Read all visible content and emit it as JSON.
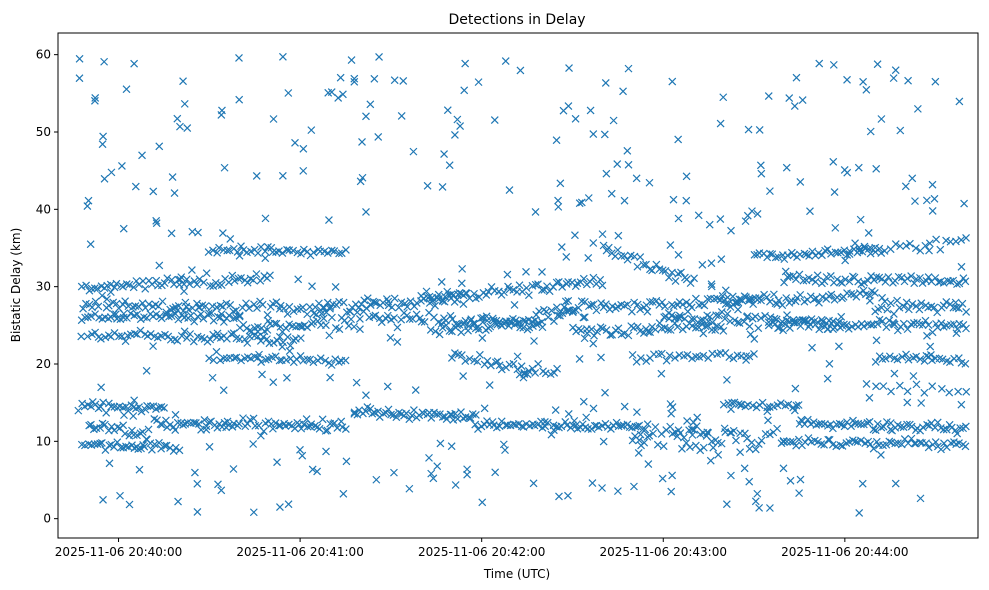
{
  "chart_data": {
    "type": "scatter",
    "title": "Detections in Delay",
    "xlabel": "Time (UTC)",
    "ylabel": "Bistatic Delay (km)",
    "marker": "x",
    "color": "#1f77b4",
    "x_axis_kind": "datetime",
    "xlim": [
      "2025-11-06 20:39:40",
      "2025-11-06 20:44:44"
    ],
    "ylim": [
      -2.5,
      62.8
    ],
    "x_ticks": [
      "2025-11-06 20:40:00",
      "2025-11-06 20:41:00",
      "2025-11-06 20:42:00",
      "2025-11-06 20:43:00",
      "2025-11-06 20:44:00"
    ],
    "y_ticks": [
      0,
      10,
      20,
      30,
      40,
      50,
      60
    ],
    "grid": false,
    "legend": "none",
    "tracks": [
      {
        "t0": "2025-11-06 20:39:47",
        "t1": "2025-11-06 20:40:15",
        "y0": 14.8,
        "y1": 14.2,
        "n": 32,
        "sd": 0.3
      },
      {
        "t0": "2025-11-06 20:39:48",
        "t1": "2025-11-06 20:40:20",
        "y0": 9.6,
        "y1": 9.2,
        "n": 34,
        "sd": 0.3
      },
      {
        "t0": "2025-11-06 20:39:50",
        "t1": "2025-11-06 20:40:10",
        "y0": 12.0,
        "y1": 11.0,
        "n": 22,
        "sd": 0.4
      },
      {
        "t0": "2025-11-06 20:40:12",
        "t1": "2025-11-06 20:41:15",
        "y0": 12.3,
        "y1": 12.0,
        "n": 75,
        "sd": 0.35
      },
      {
        "t0": "2025-11-06 20:41:18",
        "t1": "2025-11-06 20:41:58",
        "y0": 13.8,
        "y1": 13.2,
        "n": 48,
        "sd": 0.35
      },
      {
        "t0": "2025-11-06 20:41:58",
        "t1": "2025-11-06 20:42:55",
        "y0": 12.2,
        "y1": 12.0,
        "n": 65,
        "sd": 0.3
      },
      {
        "t0": "2025-11-06 20:42:50",
        "t1": "2025-11-06 20:43:15",
        "y0": 10.2,
        "y1": 11.6,
        "n": 28,
        "sd": 0.6
      },
      {
        "t0": "2025-11-06 20:43:05",
        "t1": "2025-11-06 20:43:40",
        "y0": 9.2,
        "y1": 10.8,
        "n": 30,
        "sd": 0.8
      },
      {
        "t0": "2025-11-06 20:43:20",
        "t1": "2025-11-06 20:43:45",
        "y0": 14.7,
        "y1": 14.6,
        "n": 22,
        "sd": 0.2
      },
      {
        "t0": "2025-11-06 20:43:40",
        "t1": "2025-11-06 20:44:40",
        "y0": 10.0,
        "y1": 9.6,
        "n": 60,
        "sd": 0.3
      },
      {
        "t0": "2025-11-06 20:43:45",
        "t1": "2025-11-06 20:44:40",
        "y0": 12.4,
        "y1": 11.6,
        "n": 60,
        "sd": 0.3
      },
      {
        "t0": "2025-11-06 20:39:48",
        "t1": "2025-11-06 20:40:50",
        "y0": 29.8,
        "y1": 31.2,
        "n": 60,
        "sd": 0.4
      },
      {
        "t0": "2025-11-06 20:39:48",
        "t1": "2025-11-06 20:41:10",
        "y0": 27.8,
        "y1": 27.0,
        "n": 75,
        "sd": 0.4
      },
      {
        "t0": "2025-11-06 20:39:48",
        "t1": "2025-11-06 20:40:40",
        "y0": 26.2,
        "y1": 26.0,
        "n": 50,
        "sd": 0.35
      },
      {
        "t0": "2025-11-06 20:39:50",
        "t1": "2025-11-06 20:41:00",
        "y0": 23.8,
        "y1": 23.2,
        "n": 65,
        "sd": 0.35
      },
      {
        "t0": "2025-11-06 20:40:30",
        "t1": "2025-11-06 20:41:15",
        "y0": 34.8,
        "y1": 34.4,
        "n": 40,
        "sd": 0.25
      },
      {
        "t0": "2025-11-06 20:40:30",
        "t1": "2025-11-06 20:41:15",
        "y0": 20.8,
        "y1": 20.4,
        "n": 40,
        "sd": 0.25
      },
      {
        "t0": "2025-11-06 20:40:40",
        "t1": "2025-11-06 20:41:20",
        "y0": 24.5,
        "y1": 25.5,
        "n": 40,
        "sd": 0.4
      },
      {
        "t0": "2025-11-06 20:41:05",
        "t1": "2025-11-06 20:41:55",
        "y0": 27.5,
        "y1": 28.5,
        "n": 50,
        "sd": 0.4
      },
      {
        "t0": "2025-11-06 20:41:20",
        "t1": "2025-11-06 20:42:20",
        "y0": 26.0,
        "y1": 25.0,
        "n": 60,
        "sd": 0.4
      },
      {
        "t0": "2025-11-06 20:41:40",
        "t1": "2025-11-06 20:42:40",
        "y0": 28.2,
        "y1": 30.8,
        "n": 60,
        "sd": 0.4
      },
      {
        "t0": "2025-11-06 20:41:45",
        "t1": "2025-11-06 20:42:30",
        "y0": 24.2,
        "y1": 26.5,
        "n": 45,
        "sd": 0.4
      },
      {
        "t0": "2025-11-06 20:41:50",
        "t1": "2025-11-06 20:42:25",
        "y0": 20.8,
        "y1": 19.0,
        "n": 30,
        "sd": 0.4
      },
      {
        "t0": "2025-11-06 20:42:25",
        "t1": "2025-11-06 20:43:30",
        "y0": 27.2,
        "y1": 28.2,
        "n": 65,
        "sd": 0.45
      },
      {
        "t0": "2025-11-06 20:42:30",
        "t1": "2025-11-06 20:43:20",
        "y0": 24.0,
        "y1": 25.0,
        "n": 50,
        "sd": 0.45
      },
      {
        "t0": "2025-11-06 20:42:40",
        "t1": "2025-11-06 20:43:10",
        "y0": 34.8,
        "y1": 30.6,
        "n": 30,
        "sd": 0.5
      },
      {
        "t0": "2025-11-06 20:42:50",
        "t1": "2025-11-06 20:43:30",
        "y0": 20.8,
        "y1": 21.2,
        "n": 30,
        "sd": 0.3
      },
      {
        "t0": "2025-11-06 20:43:00",
        "t1": "2025-11-06 20:44:00",
        "y0": 26.0,
        "y1": 25.4,
        "n": 60,
        "sd": 0.4
      },
      {
        "t0": "2025-11-06 20:43:20",
        "t1": "2025-11-06 20:44:10",
        "y0": 28.2,
        "y1": 29.0,
        "n": 50,
        "sd": 0.4
      },
      {
        "t0": "2025-11-06 20:43:30",
        "t1": "2025-11-06 20:44:10",
        "y0": 33.8,
        "y1": 34.8,
        "n": 40,
        "sd": 0.3
      },
      {
        "t0": "2025-11-06 20:43:35",
        "t1": "2025-11-06 20:44:40",
        "y0": 25.2,
        "y1": 25.0,
        "n": 65,
        "sd": 0.35
      },
      {
        "t0": "2025-11-06 20:43:40",
        "t1": "2025-11-06 20:44:40",
        "y0": 31.0,
        "y1": 30.8,
        "n": 60,
        "sd": 0.3
      },
      {
        "t0": "2025-11-06 20:44:10",
        "t1": "2025-11-06 20:44:40",
        "y0": 27.2,
        "y1": 27.6,
        "n": 30,
        "sd": 0.4
      },
      {
        "t0": "2025-11-06 20:44:10",
        "t1": "2025-11-06 20:44:40",
        "y0": 20.8,
        "y1": 20.6,
        "n": 25,
        "sd": 0.25
      },
      {
        "t0": "2025-11-06 20:44:00",
        "t1": "2025-11-06 20:44:40",
        "y0": 34.5,
        "y1": 36.0,
        "n": 25,
        "sd": 0.4
      },
      {
        "t0": "2025-11-06 20:44:10",
        "t1": "2025-11-06 20:44:40",
        "y0": 17.0,
        "y1": 16.5,
        "n": 12,
        "sd": 0.4
      }
    ],
    "clutter_points": 420,
    "clutter_range": [
      0.5,
      59.8
    ]
  }
}
